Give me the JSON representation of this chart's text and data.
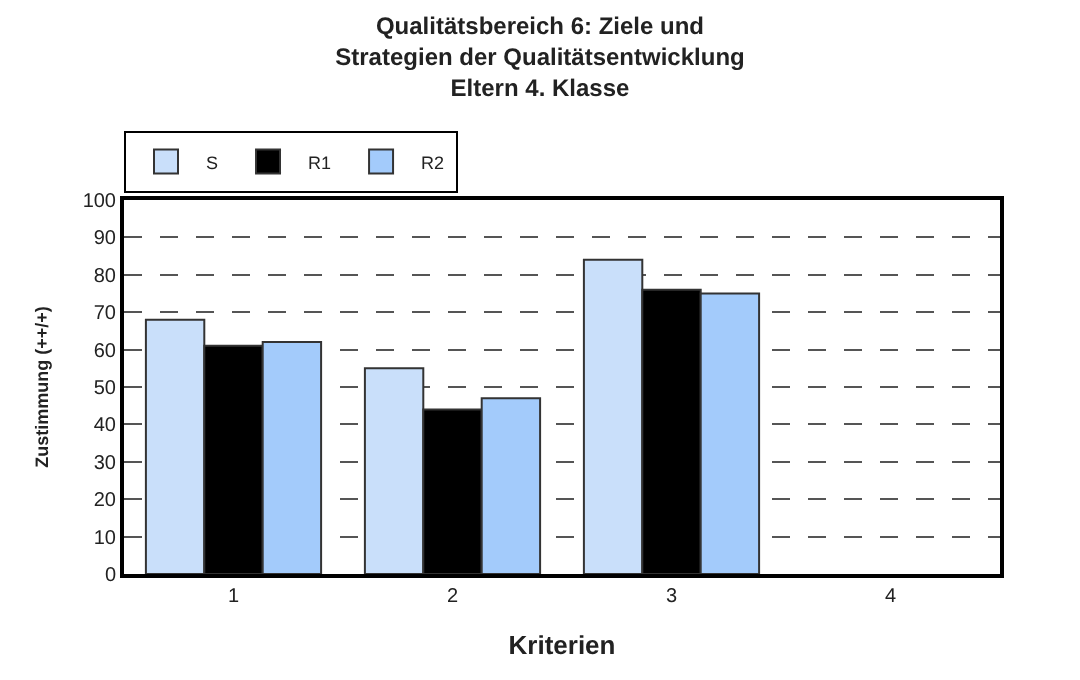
{
  "chart_data": {
    "type": "bar",
    "title": "Qualitätsbereich 6: Ziele und\nStrategien der Qualitätsentwicklung\nEltern 4. Klasse",
    "xlabel": "Kriterien",
    "ylabel": "Zustimmung (++/+)",
    "categories": [
      "1",
      "2",
      "3",
      "4"
    ],
    "series": [
      {
        "name": "S",
        "color": "#c9dffa",
        "values": [
          68,
          55,
          84,
          null
        ]
      },
      {
        "name": "R1",
        "color": "#000000",
        "values": [
          61,
          44,
          76,
          null
        ]
      },
      {
        "name": "R2",
        "color": "#a3cbfb",
        "values": [
          62,
          47,
          75,
          null
        ]
      }
    ],
    "ylim": [
      0,
      100
    ],
    "yticks": [
      0,
      10,
      20,
      30,
      40,
      50,
      60,
      70,
      80,
      90,
      100
    ],
    "grid": "y",
    "line_style": "dashed",
    "legend": "top left"
  }
}
